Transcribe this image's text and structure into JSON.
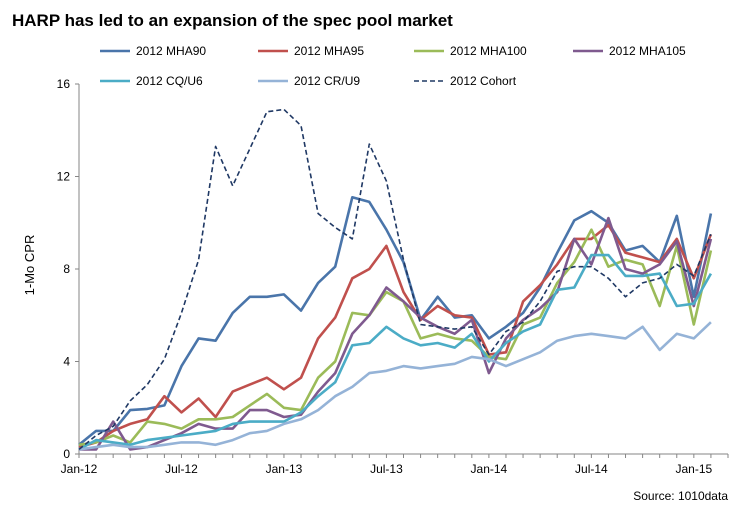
{
  "chart_data": {
    "type": "line",
    "title": "HARP has led to an expansion of the spec pool market",
    "ylabel": "1-Mo CPR",
    "xlabel": "",
    "source": "Source: 1010data",
    "ylim": [
      0,
      16
    ],
    "yticks": [
      "0",
      "4",
      "8",
      "12",
      "16"
    ],
    "x_tick_labels": [
      "Jan-12",
      "Jul-12",
      "Jan-13",
      "Jul-13",
      "Jan-14",
      "Jul-14",
      "Jan-15"
    ],
    "x_tick_dates": [
      "2012-01",
      "2012-07",
      "2013-01",
      "2013-07",
      "2014-01",
      "2014-07",
      "2015-01"
    ],
    "x": [
      "2012-01",
      "2012-02",
      "2012-03",
      "2012-04",
      "2012-05",
      "2012-06",
      "2012-07",
      "2012-08",
      "2012-09",
      "2012-10",
      "2012-11",
      "2012-12",
      "2013-01",
      "2013-02",
      "2013-03",
      "2013-04",
      "2013-05",
      "2013-06",
      "2013-07",
      "2013-08",
      "2013-09",
      "2013-10",
      "2013-11",
      "2013-12",
      "2014-01",
      "2014-02",
      "2014-03",
      "2014-04",
      "2014-05",
      "2014-06",
      "2014-07",
      "2014-08",
      "2014-09",
      "2014-10",
      "2014-11",
      "2014-12",
      "2015-01",
      "2015-02",
      "2015-03"
    ],
    "grid": false,
    "legend_position": "top",
    "series": [
      {
        "name": "2012 MHA90",
        "color": "#4A75AA",
        "dash": false,
        "values": [
          0.4,
          1.0,
          1.0,
          1.9,
          1.95,
          2.1,
          3.8,
          5.0,
          4.9,
          6.1,
          6.8,
          6.8,
          6.9,
          6.2,
          7.4,
          8.1,
          11.1,
          10.9,
          9.7,
          8.3,
          5.8,
          6.8,
          5.9,
          6.0,
          5.0,
          5.5,
          6.1,
          7.2,
          8.7,
          10.1,
          10.5,
          10.0,
          8.8,
          9.0,
          8.3,
          10.3,
          6.8,
          10.4,
          null
        ]
      },
      {
        "name": "2012 MHA95",
        "color": "#C0504D",
        "dash": false,
        "values": [
          0.3,
          0.5,
          1.0,
          1.3,
          1.5,
          2.5,
          1.8,
          2.4,
          1.6,
          2.7,
          3.0,
          3.3,
          2.8,
          3.3,
          5.0,
          5.9,
          7.6,
          8.0,
          9.0,
          7.0,
          5.8,
          6.4,
          6.0,
          5.9,
          4.3,
          4.4,
          6.6,
          7.3,
          8.2,
          9.3,
          9.3,
          9.9,
          8.7,
          8.5,
          8.3,
          9.3,
          7.6,
          9.5,
          null
        ]
      },
      {
        "name": "2012 MHA100",
        "color": "#9BBB59",
        "dash": false,
        "values": [
          0.4,
          0.5,
          0.8,
          0.5,
          1.4,
          1.3,
          1.1,
          1.5,
          1.5,
          1.6,
          2.1,
          2.6,
          2.0,
          1.9,
          3.3,
          4.0,
          6.1,
          6.0,
          7.0,
          6.6,
          5.0,
          5.2,
          5.0,
          4.9,
          4.2,
          4.1,
          5.6,
          5.9,
          7.4,
          8.3,
          9.7,
          8.1,
          8.4,
          8.2,
          6.4,
          9.0,
          5.6,
          8.8,
          null
        ]
      },
      {
        "name": "2012 MHA105",
        "color": "#7F5A8F",
        "dash": false,
        "values": [
          0.2,
          0.2,
          1.4,
          0.2,
          0.3,
          0.6,
          0.9,
          1.3,
          1.1,
          1.1,
          1.9,
          1.9,
          1.6,
          1.7,
          2.7,
          3.5,
          5.2,
          6.0,
          7.2,
          6.6,
          5.9,
          5.5,
          5.2,
          5.8,
          3.5,
          5.0,
          5.8,
          6.3,
          7.0,
          9.3,
          8.2,
          10.2,
          8.0,
          7.8,
          8.2,
          9.2,
          6.4,
          9.3,
          null
        ]
      },
      {
        "name": "2012 CQ/U6",
        "color": "#4BACC6",
        "dash": false,
        "values": [
          0.2,
          0.6,
          0.5,
          0.4,
          0.6,
          0.7,
          0.8,
          0.9,
          1.0,
          1.3,
          1.4,
          1.4,
          1.4,
          1.8,
          2.5,
          3.1,
          4.7,
          4.8,
          5.5,
          5.0,
          4.7,
          4.8,
          4.6,
          5.2,
          4.0,
          4.8,
          5.3,
          5.6,
          7.1,
          7.2,
          8.6,
          8.6,
          7.7,
          7.7,
          7.8,
          6.4,
          6.5,
          7.8,
          null
        ]
      },
      {
        "name": "2012 CR/U9",
        "color": "#95B3D7",
        "dash": false,
        "values": [
          0.2,
          0.3,
          0.4,
          0.3,
          0.3,
          0.4,
          0.5,
          0.5,
          0.4,
          0.6,
          0.9,
          1.0,
          1.3,
          1.5,
          1.9,
          2.5,
          2.9,
          3.5,
          3.6,
          3.8,
          3.7,
          3.8,
          3.9,
          4.2,
          4.1,
          3.8,
          4.1,
          4.4,
          4.9,
          5.1,
          5.2,
          5.1,
          5.0,
          5.5,
          4.5,
          5.2,
          5.0,
          5.7,
          null
        ]
      },
      {
        "name": "2012 Cohort",
        "color": "#1F3864",
        "dash": true,
        "values": [
          0.2,
          0.8,
          1.2,
          2.3,
          3.0,
          4.1,
          6.1,
          8.4,
          13.3,
          11.6,
          13.2,
          14.8,
          14.9,
          14.2,
          10.4,
          9.8,
          9.3,
          13.4,
          11.8,
          8.4,
          5.6,
          5.5,
          5.4,
          5.5,
          4.3,
          5.3,
          5.7,
          6.6,
          7.9,
          8.1,
          8.1,
          7.6,
          6.8,
          7.4,
          7.6,
          8.2,
          7.7,
          9.5,
          null
        ]
      }
    ]
  }
}
